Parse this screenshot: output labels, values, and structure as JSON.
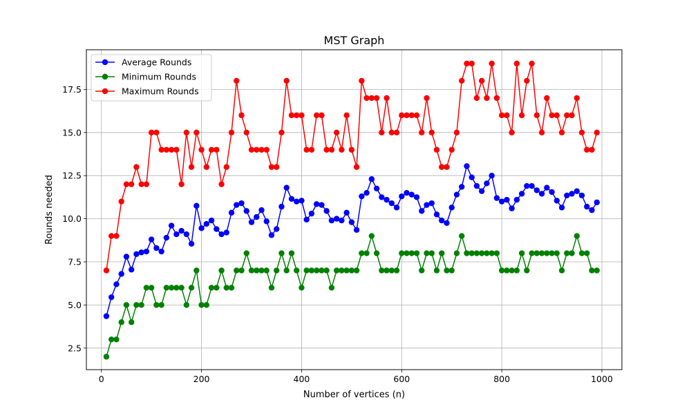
{
  "chart_data": {
    "type": "line",
    "title": "MST Graph",
    "xlabel": "Number of vertices (n)",
    "ylabel": "Rounds needed",
    "xlim": [
      -30,
      1040
    ],
    "ylim": [
      1.25,
      19.8
    ],
    "xticks": [
      0,
      200,
      400,
      600,
      800,
      1000
    ],
    "xtick_labels": [
      "0",
      "200",
      "400",
      "600",
      "800",
      "1000"
    ],
    "yticks": [
      2.5,
      5.0,
      7.5,
      10.0,
      12.5,
      15.0,
      17.5
    ],
    "ytick_labels": [
      "2.5",
      "5.0",
      "7.5",
      "10.0",
      "12.5",
      "15.0",
      "17.5"
    ],
    "grid": true,
    "legend_position": "top-left",
    "x": [
      10,
      20,
      30,
      40,
      50,
      60,
      70,
      80,
      90,
      100,
      110,
      120,
      130,
      140,
      150,
      160,
      170,
      180,
      190,
      200,
      210,
      220,
      230,
      240,
      250,
      260,
      270,
      280,
      290,
      300,
      310,
      320,
      330,
      340,
      350,
      360,
      370,
      380,
      390,
      400,
      410,
      420,
      430,
      440,
      450,
      460,
      470,
      480,
      490,
      500,
      510,
      520,
      530,
      540,
      550,
      560,
      570,
      580,
      590,
      600,
      610,
      620,
      630,
      640,
      650,
      660,
      670,
      680,
      690,
      700,
      710,
      720,
      730,
      740,
      750,
      760,
      770,
      780,
      790,
      800,
      810,
      820,
      830,
      840,
      850,
      860,
      870,
      880,
      890,
      900,
      910,
      920,
      930,
      940,
      950,
      960,
      970,
      980,
      990
    ],
    "series": [
      {
        "name": "Average Rounds",
        "color": "#0000ff",
        "values": [
          4.35,
          5.45,
          6.2,
          6.8,
          7.8,
          7.05,
          7.95,
          8.05,
          8.1,
          8.8,
          8.3,
          8.1,
          8.9,
          9.6,
          9.1,
          9.3,
          9.1,
          8.55,
          10.75,
          9.45,
          9.7,
          9.9,
          9.4,
          9.1,
          9.2,
          10.35,
          10.8,
          10.9,
          10.45,
          9.8,
          10.1,
          10.5,
          9.85,
          9.05,
          9.4,
          10.7,
          11.8,
          11.15,
          11.0,
          11.05,
          9.95,
          10.3,
          10.85,
          10.8,
          10.45,
          9.9,
          10.0,
          9.9,
          10.35,
          9.8,
          9.35,
          11.3,
          11.5,
          12.3,
          11.75,
          11.25,
          11.1,
          10.9,
          10.65,
          11.3,
          11.5,
          11.4,
          11.25,
          10.45,
          10.8,
          10.9,
          10.25,
          9.9,
          9.75,
          10.65,
          11.4,
          11.85,
          13.05,
          12.4,
          11.9,
          11.6,
          12.05,
          12.5,
          11.2,
          11.0,
          11.1,
          10.6,
          11.1,
          11.45,
          11.9,
          11.9,
          11.65,
          11.45,
          11.8,
          11.55,
          11.05,
          10.65,
          11.35,
          11.45,
          11.6,
          11.35,
          10.7,
          10.5,
          10.95
        ]
      },
      {
        "name": "Minimum Rounds",
        "color": "#008000",
        "values": [
          2,
          3,
          3,
          4,
          5,
          4,
          5,
          5,
          6,
          6,
          5,
          5,
          6,
          6,
          6,
          6,
          5,
          6,
          7,
          5,
          5,
          6,
          6,
          7,
          6,
          6,
          7,
          7,
          8,
          7,
          7,
          7,
          7,
          6,
          7,
          8,
          7,
          8,
          7,
          6,
          7,
          7,
          7,
          7,
          7,
          6,
          7,
          7,
          7,
          7,
          7,
          8,
          8,
          9,
          8,
          7,
          7,
          7,
          7,
          8,
          8,
          8,
          8,
          7,
          8,
          8,
          7,
          8,
          7,
          7,
          8,
          9,
          8,
          8,
          8,
          8,
          8,
          8,
          8,
          7,
          7,
          7,
          7,
          8,
          7,
          8,
          8,
          8,
          8,
          8,
          8,
          7,
          8,
          8,
          9,
          8,
          8,
          7,
          7
        ]
      },
      {
        "name": "Maximum Rounds",
        "color": "#ff0000",
        "values": [
          7,
          9,
          9,
          11,
          12,
          12,
          13,
          12,
          12,
          15,
          15,
          14,
          14,
          14,
          14,
          12,
          15,
          13,
          15,
          14,
          13,
          14,
          14,
          12,
          13,
          15,
          18,
          16,
          15,
          14,
          14,
          14,
          14,
          13,
          13,
          15,
          18,
          16,
          16,
          16,
          14,
          14,
          16,
          16,
          14,
          14,
          15,
          14,
          16,
          14,
          13,
          18,
          17,
          17,
          17,
          15,
          17,
          15,
          15,
          16,
          16,
          16,
          16,
          15,
          17,
          15,
          14,
          13,
          13,
          14,
          15,
          18,
          19,
          19,
          17,
          18,
          17,
          19,
          17,
          16,
          16,
          15,
          19,
          16,
          18,
          19,
          16,
          15,
          17,
          16,
          16,
          15,
          16,
          16,
          17,
          15,
          14,
          14,
          15
        ]
      }
    ]
  }
}
